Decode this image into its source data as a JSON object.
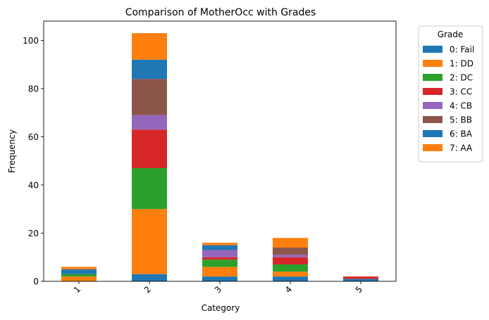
{
  "chart_data": {
    "type": "bar",
    "stacked": true,
    "title": "Comparison of MotherOcc with Grades",
    "xlabel": "Category",
    "ylabel": "Frequency",
    "categories": [
      "1",
      "2",
      "3",
      "4",
      "5"
    ],
    "ylim": [
      0,
      108
    ],
    "yticks": [
      0,
      20,
      40,
      60,
      80,
      100
    ],
    "legend": {
      "title": "Grade",
      "placement": "outside-upper-right"
    },
    "series": [
      {
        "name": "0: Fail",
        "color": "#1f77b4",
        "values": [
          0,
          3,
          2,
          2,
          1
        ]
      },
      {
        "name": "1: DD",
        "color": "#ff7f0e",
        "values": [
          2,
          27,
          4,
          2,
          0
        ]
      },
      {
        "name": "2: DC",
        "color": "#2ca02c",
        "values": [
          1,
          17,
          3,
          3,
          0
        ]
      },
      {
        "name": "3: CC",
        "color": "#d62728",
        "values": [
          0,
          16,
          1,
          3,
          1
        ]
      },
      {
        "name": "4: CB",
        "color": "#9467bd",
        "values": [
          0,
          6,
          3,
          1,
          0
        ]
      },
      {
        "name": "5: BB",
        "color": "#8c564b",
        "values": [
          0,
          15,
          0,
          3,
          0
        ]
      },
      {
        "name": "6: BA",
        "color": "#1f77b4",
        "values": [
          2,
          8,
          2,
          0,
          0
        ]
      },
      {
        "name": "7: AA",
        "color": "#ff7f0e",
        "values": [
          1,
          11,
          1,
          4,
          0
        ]
      }
    ]
  }
}
